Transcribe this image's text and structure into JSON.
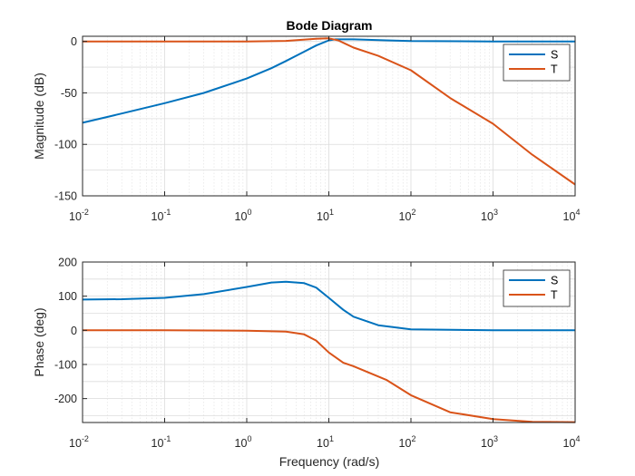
{
  "title": "Bode Diagram",
  "xlabel": "Frequency (rad/s)",
  "colors": {
    "S": "#0072BD",
    "T": "#D95319"
  },
  "chart_data": [
    {
      "type": "line",
      "title": "Bode Diagram",
      "xlabel": "",
      "ylabel": "Magnitude (dB)",
      "xscale": "log",
      "xlim": [
        0.01,
        10000
      ],
      "ylim": [
        -150,
        5
      ],
      "grid": true,
      "legend_position": "top-right",
      "x_ticks": [
        {
          "base": "10",
          "exp": "-2",
          "value": 0.01
        },
        {
          "base": "10",
          "exp": "-1",
          "value": 0.1
        },
        {
          "base": "10",
          "exp": "0",
          "value": 1
        },
        {
          "base": "10",
          "exp": "1",
          "value": 10
        },
        {
          "base": "10",
          "exp": "2",
          "value": 100
        },
        {
          "base": "10",
          "exp": "3",
          "value": 1000
        },
        {
          "base": "10",
          "exp": "4",
          "value": 10000
        }
      ],
      "y_ticks": [
        0,
        -50,
        -100,
        -150
      ],
      "series": [
        {
          "name": "S",
          "color": "#0072BD",
          "points": [
            [
              0.01,
              -79
            ],
            [
              0.03,
              -70
            ],
            [
              0.1,
              -60
            ],
            [
              0.3,
              -50
            ],
            [
              1,
              -36
            ],
            [
              2,
              -26
            ],
            [
              3,
              -19
            ],
            [
              5,
              -10
            ],
            [
              7,
              -4
            ],
            [
              10,
              1
            ],
            [
              12,
              2
            ],
            [
              20,
              2
            ],
            [
              50,
              1
            ],
            [
              100,
              0.3
            ],
            [
              1000,
              0
            ],
            [
              10000,
              0
            ]
          ]
        },
        {
          "name": "T",
          "color": "#D95319",
          "points": [
            [
              0.01,
              0
            ],
            [
              0.1,
              0
            ],
            [
              1,
              0
            ],
            [
              3,
              0.5
            ],
            [
              7,
              2.5
            ],
            [
              10,
              3
            ],
            [
              13,
              1
            ],
            [
              20,
              -6
            ],
            [
              40,
              -14
            ],
            [
              100,
              -28
            ],
            [
              300,
              -55
            ],
            [
              1000,
              -80
            ],
            [
              3000,
              -110
            ],
            [
              10000,
              -139
            ]
          ]
        }
      ]
    },
    {
      "type": "line",
      "title": "",
      "xlabel": "Frequency (rad/s)",
      "ylabel": "Phase (deg)",
      "xscale": "log",
      "xlim": [
        0.01,
        10000
      ],
      "ylim": [
        -270,
        200
      ],
      "grid": true,
      "legend_position": "top-right",
      "x_ticks": [
        {
          "base": "10",
          "exp": "-2",
          "value": 0.01
        },
        {
          "base": "10",
          "exp": "-1",
          "value": 0.1
        },
        {
          "base": "10",
          "exp": "0",
          "value": 1
        },
        {
          "base": "10",
          "exp": "1",
          "value": 10
        },
        {
          "base": "10",
          "exp": "2",
          "value": 100
        },
        {
          "base": "10",
          "exp": "3",
          "value": 1000
        },
        {
          "base": "10",
          "exp": "4",
          "value": 10000
        }
      ],
      "y_ticks": [
        200,
        100,
        0,
        -100,
        -200
      ],
      "series": [
        {
          "name": "S",
          "color": "#0072BD",
          "points": [
            [
              0.01,
              90
            ],
            [
              0.03,
              91
            ],
            [
              0.1,
              95
            ],
            [
              0.3,
              106
            ],
            [
              1,
              127
            ],
            [
              2,
              140
            ],
            [
              3,
              142
            ],
            [
              5,
              138
            ],
            [
              7,
              125
            ],
            [
              10,
              95
            ],
            [
              15,
              60
            ],
            [
              20,
              40
            ],
            [
              40,
              15
            ],
            [
              100,
              3
            ],
            [
              1000,
              0
            ],
            [
              10000,
              0
            ]
          ]
        },
        {
          "name": "T",
          "color": "#D95319",
          "points": [
            [
              0.01,
              0
            ],
            [
              0.1,
              0
            ],
            [
              1,
              -1
            ],
            [
              3,
              -4
            ],
            [
              5,
              -12
            ],
            [
              7,
              -30
            ],
            [
              10,
              -65
            ],
            [
              15,
              -95
            ],
            [
              20,
              -105
            ],
            [
              50,
              -145
            ],
            [
              100,
              -190
            ],
            [
              300,
              -240
            ],
            [
              1000,
              -260
            ],
            [
              3000,
              -268
            ],
            [
              10000,
              -269
            ]
          ]
        }
      ]
    }
  ]
}
